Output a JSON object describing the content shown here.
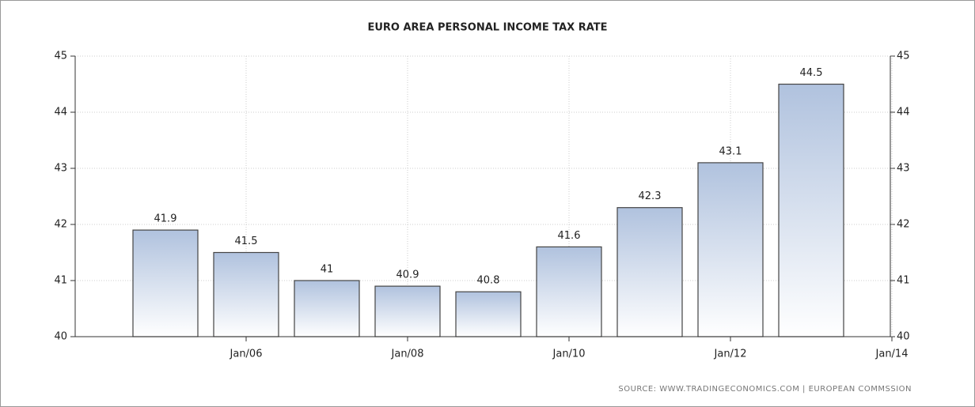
{
  "chart_data": {
    "type": "bar",
    "title": "EURO AREA PERSONAL INCOME TAX RATE",
    "categories": [
      null,
      null,
      null,
      null,
      null,
      null,
      null,
      null,
      null
    ],
    "values": [
      41.9,
      41.5,
      41,
      40.9,
      40.8,
      41.6,
      42.3,
      43.1,
      44.5
    ],
    "xtick_labels": [
      "Jan/06",
      "Jan/08",
      "Jan/10",
      "Jan/12",
      "Jan/14"
    ],
    "ylim": [
      40,
      45
    ],
    "yticks": [
      40,
      41,
      42,
      43,
      44,
      45
    ],
    "grid": true,
    "color": "#b0c2de",
    "source": "SOURCE:  WWW.TRADINGECONOMICS.COM  |  EUROPEAN  COMMSSION"
  }
}
